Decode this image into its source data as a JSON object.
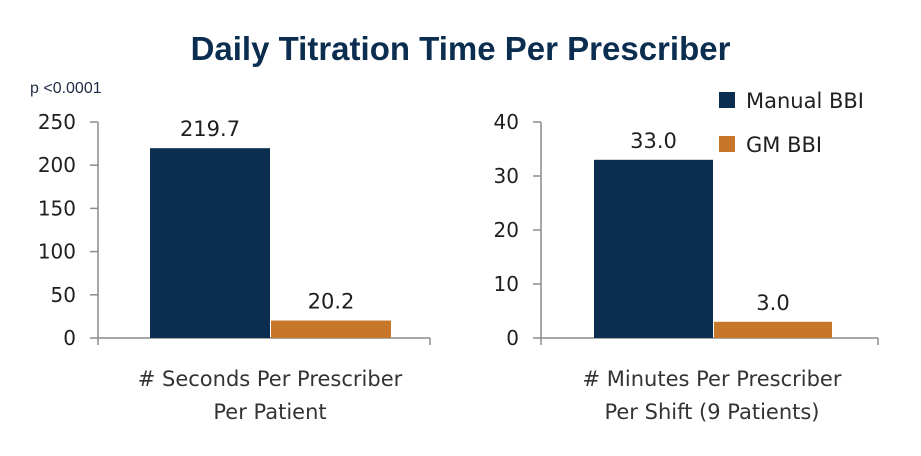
{
  "title": "Daily Titration Time Per Prescriber",
  "annotation": "p <0.0001",
  "legend": [
    {
      "name": "Manual BBI",
      "color": "#0b2d4f"
    },
    {
      "name": "GM BBI",
      "color": "#c8762a"
    }
  ],
  "chart_data": [
    {
      "type": "bar",
      "categories": [
        "# Seconds Per Prescriber\nPer Patient"
      ],
      "xlabel_lines": [
        "# Seconds Per Prescriber",
        "Per Patient"
      ],
      "series": [
        {
          "name": "Manual BBI",
          "values": [
            219.7
          ],
          "labels": [
            "219.7"
          ]
        },
        {
          "name": "GM BBI",
          "values": [
            20.2
          ],
          "labels": [
            "20.2"
          ]
        }
      ],
      "ylim": [
        0,
        250
      ],
      "yticks": [
        0,
        50,
        100,
        150,
        200,
        250
      ]
    },
    {
      "type": "bar",
      "categories": [
        "# Minutes Per Prescriber\nPer Shift (9 Patients)"
      ],
      "xlabel_lines": [
        "# Minutes Per Prescriber",
        "Per Shift (9 Patients)"
      ],
      "series": [
        {
          "name": "Manual BBI",
          "values": [
            33.0
          ],
          "labels": [
            "33.0"
          ]
        },
        {
          "name": "GM BBI",
          "values": [
            3.0
          ],
          "labels": [
            "3.0"
          ]
        }
      ],
      "ylim": [
        0,
        40
      ],
      "yticks": [
        0,
        10,
        20,
        30,
        40
      ]
    }
  ]
}
